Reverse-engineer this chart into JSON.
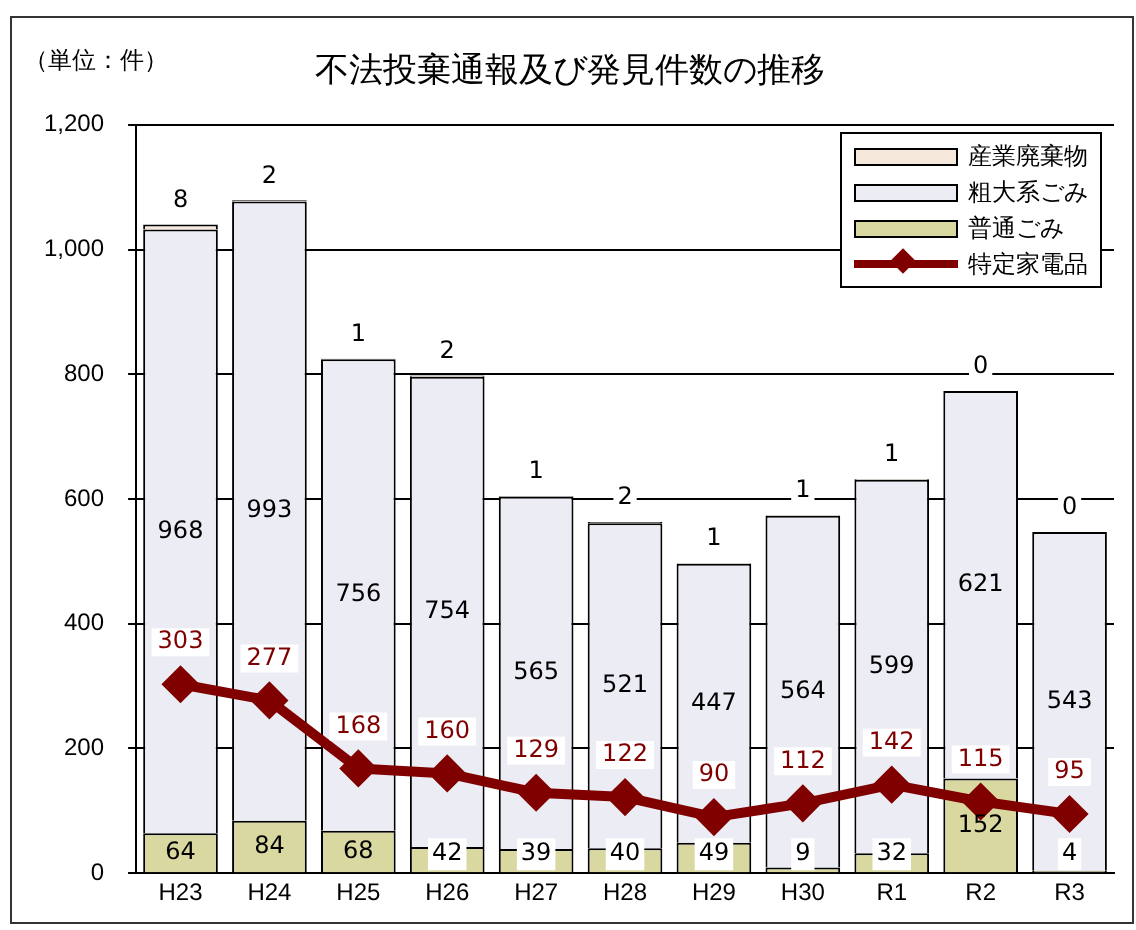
{
  "chart_data": {
    "type": "bar",
    "title": "不法投棄通報及び発見件数の推移",
    "annotations": [
      "（単位：件）"
    ],
    "categories": [
      "H23",
      "H24",
      "H25",
      "H26",
      "H27",
      "H28",
      "H29",
      "H30",
      "R1",
      "R2",
      "R3"
    ],
    "stacked": true,
    "series": [
      {
        "name": "普通ごみ",
        "color": "#d8d8a0",
        "values": [
          64,
          84,
          68,
          42,
          39,
          40,
          49,
          9,
          32,
          152,
          4
        ]
      },
      {
        "name": "粗大系ごみ",
        "color": "#ececf4",
        "values": [
          968,
          993,
          756,
          754,
          565,
          521,
          447,
          564,
          599,
          621,
          543
        ]
      },
      {
        "name": "産業廃棄物",
        "color": "#f6e8da",
        "values": [
          8,
          2,
          1,
          2,
          1,
          2,
          1,
          1,
          1,
          0,
          0
        ]
      },
      {
        "name": "特定家電品",
        "type": "line",
        "color": "#800000",
        "marker": "diamond",
        "values": [
          303,
          277,
          168,
          160,
          129,
          122,
          90,
          112,
          142,
          115,
          95
        ]
      }
    ],
    "ylim": [
      0,
      1200
    ],
    "yticks": [
      0,
      200,
      400,
      600,
      800,
      {
        "value": 1000,
        "label": "1,000"
      },
      {
        "value": 1200,
        "label": "1,200"
      }
    ],
    "grid": "y",
    "legend": "top right",
    "data_labels": true
  }
}
